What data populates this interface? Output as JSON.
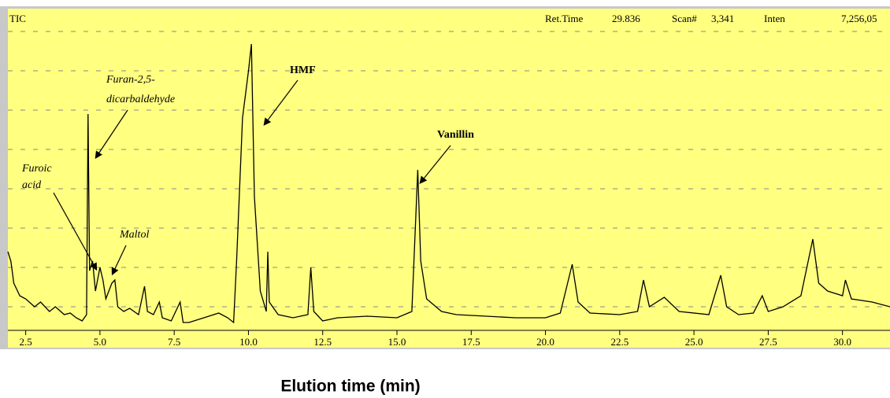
{
  "chart_data": {
    "type": "line",
    "header": [
      "TIC",
      "Ret.Time",
      "29.836",
      "Scan#",
      "3,341",
      "Inten",
      "7,256,05"
    ],
    "xlabel": "Elution time (min)",
    "annotations": [
      [
        "Furan-2,5-",
        "dicarbaldehyde"
      ],
      [
        "HMF"
      ],
      [
        "Vanillin"
      ],
      [
        "Furoic",
        "acid"
      ],
      [
        "Maltol"
      ]
    ],
    "color": "#000000",
    "xlim": [
      1.9,
      31.6
    ],
    "ylim": [
      0,
      100
    ],
    "xticks": [
      2.5,
      {
        "value": 5,
        "label": "5.0"
      },
      7.5,
      {
        "value": 10,
        "label": "10.0"
      },
      12.5,
      {
        "value": 15,
        "label": "15.0"
      },
      17.5,
      {
        "value": 20,
        "label": "20.0"
      },
      22.5,
      {
        "value": 25,
        "label": "25.0"
      },
      27.5,
      {
        "value": 30,
        "label": "30.0"
      }
    ],
    "x": [
      1.9,
      2.0,
      2.1,
      2.3,
      2.5,
      2.8,
      3.0,
      3.3,
      3.5,
      3.8,
      4.0,
      4.2,
      4.4,
      4.55,
      4.6,
      4.65,
      4.75,
      4.85,
      5.0,
      5.1,
      5.2,
      5.4,
      5.5,
      5.6,
      5.8,
      6.0,
      6.3,
      6.5,
      6.6,
      6.8,
      7.0,
      7.1,
      7.4,
      7.7,
      7.8,
      8.0,
      8.5,
      9.0,
      9.3,
      9.5,
      9.6,
      9.8,
      10.0,
      10.1,
      10.2,
      10.4,
      10.6,
      10.65,
      10.7,
      11.0,
      11.5,
      12.0,
      12.1,
      12.2,
      12.5,
      13.0,
      14.0,
      15.0,
      15.5,
      15.7,
      15.8,
      16.0,
      16.5,
      17.0,
      18.0,
      19.0,
      20.0,
      20.5,
      20.9,
      21.1,
      21.5,
      22.5,
      23.1,
      23.3,
      23.5,
      24.0,
      24.5,
      25.5,
      25.9,
      26.1,
      26.5,
      27.0,
      27.3,
      27.5,
      28.0,
      28.6,
      29.0,
      29.2,
      29.5,
      30.0,
      30.1,
      30.3,
      31.0,
      31.6
    ],
    "values": [
      25,
      22,
      15,
      11,
      10,
      7.5,
      9,
      6,
      7.5,
      5,
      5.5,
      4,
      3,
      5,
      68.75,
      19,
      22,
      12.5,
      20,
      16,
      10,
      15,
      16,
      7.5,
      6,
      7,
      5,
      14,
      6,
      5,
      9,
      4,
      3,
      9,
      2.5,
      2.5,
      4,
      5.5,
      4,
      2.5,
      22,
      67.5,
      82.5,
      91,
      42.5,
      12.5,
      6,
      25,
      9,
      5,
      4,
      5,
      20,
      6,
      3,
      4,
      4.5,
      4,
      6,
      51,
      22,
      10,
      6,
      5,
      4.5,
      4,
      4,
      5.5,
      21,
      9,
      5.5,
      5,
      6,
      16,
      7.5,
      10.5,
      6,
      5,
      17.5,
      7.5,
      5,
      5.5,
      11,
      6,
      7.5,
      11,
      29,
      15,
      12.5,
      11,
      16,
      10,
      9,
      7.5
    ]
  }
}
